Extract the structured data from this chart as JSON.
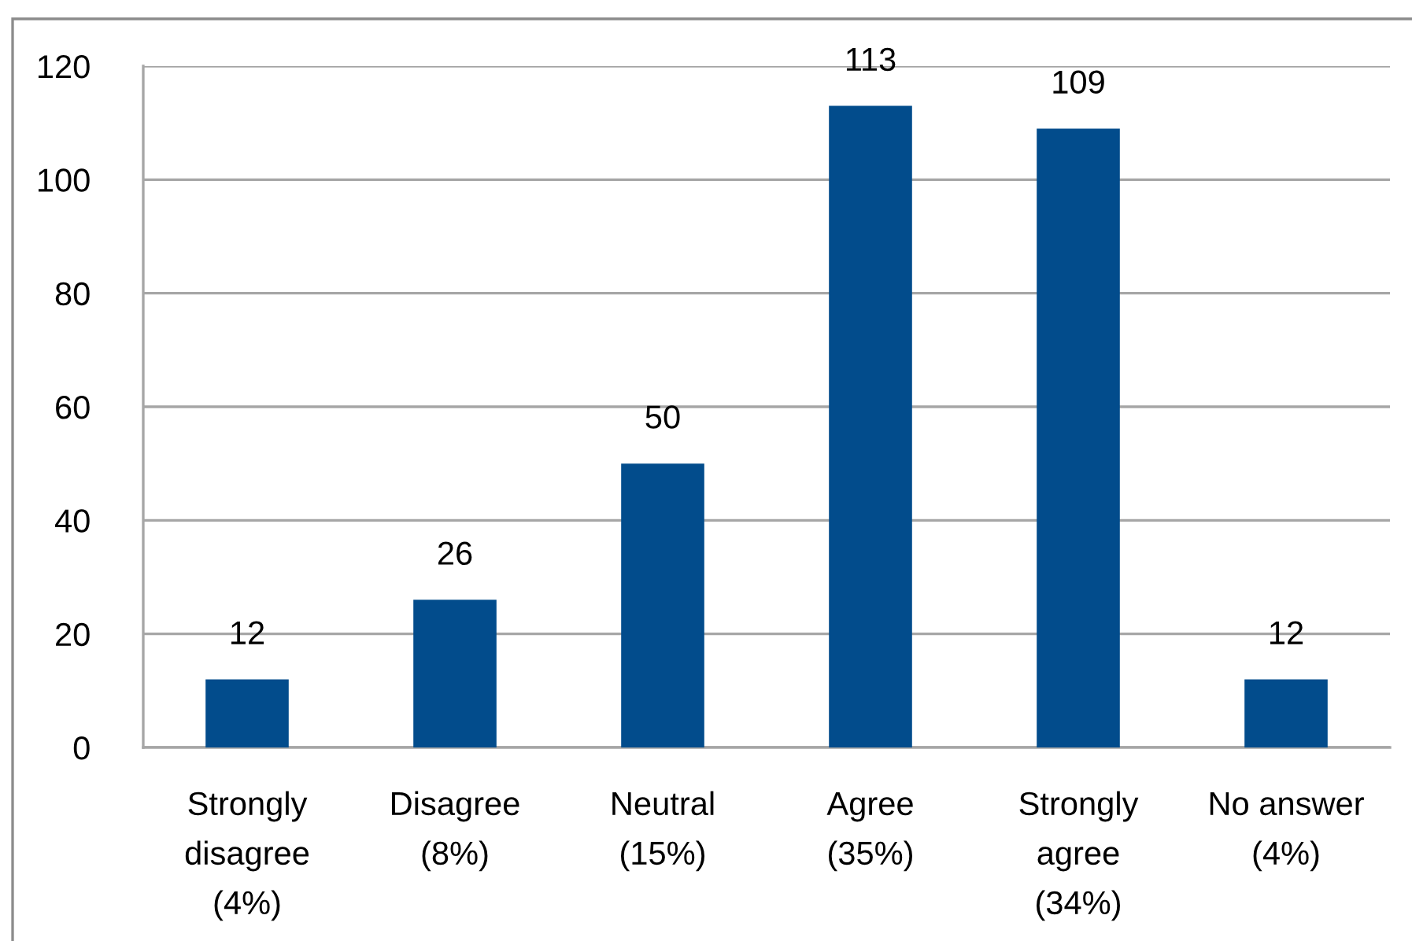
{
  "chart_data": {
    "type": "bar",
    "categories": [
      "Strongly\ndisagree\n(4%)",
      "Disagree\n(8%)",
      "Neutral\n(15%)",
      "Agree\n(35%)",
      "Strongly\nagree\n(34%)",
      "No answer\n(4%)"
    ],
    "values": [
      12,
      26,
      50,
      113,
      109,
      12
    ],
    "color": "#024c8c",
    "ylim": [
      0,
      120
    ],
    "yticks": [
      0,
      20,
      40,
      60,
      80,
      100,
      120
    ],
    "grid": "y",
    "data_labels": true,
    "legend": false
  }
}
